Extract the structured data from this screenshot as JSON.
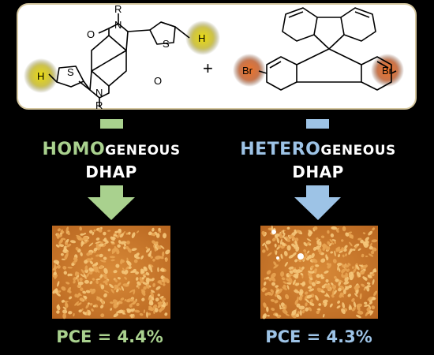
{
  "scheme": {
    "atoms": {
      "r": "R",
      "n": "N",
      "o": "O",
      "s": "S",
      "h": "H",
      "br": "Br"
    },
    "plus": "+"
  },
  "homogeneous": {
    "cap": "HOMO",
    "rest": "GENEOUS",
    "dhap": "DHAP",
    "pce": "PCE = 4.4%",
    "color": "#a9d18e"
  },
  "heterogeneous": {
    "cap": "HETERO",
    "rest": "GENEOUS",
    "dhap": "DHAP",
    "pce": "PCE = 4.3%",
    "color": "#9dc3e6"
  },
  "colors": {
    "background": "#000000",
    "frame": "#d6c8a0",
    "h_highlight": "#e0d200",
    "br_highlight": "#e05a10",
    "afm_base": "#c8782a",
    "afm_light": "#f5c77a"
  }
}
